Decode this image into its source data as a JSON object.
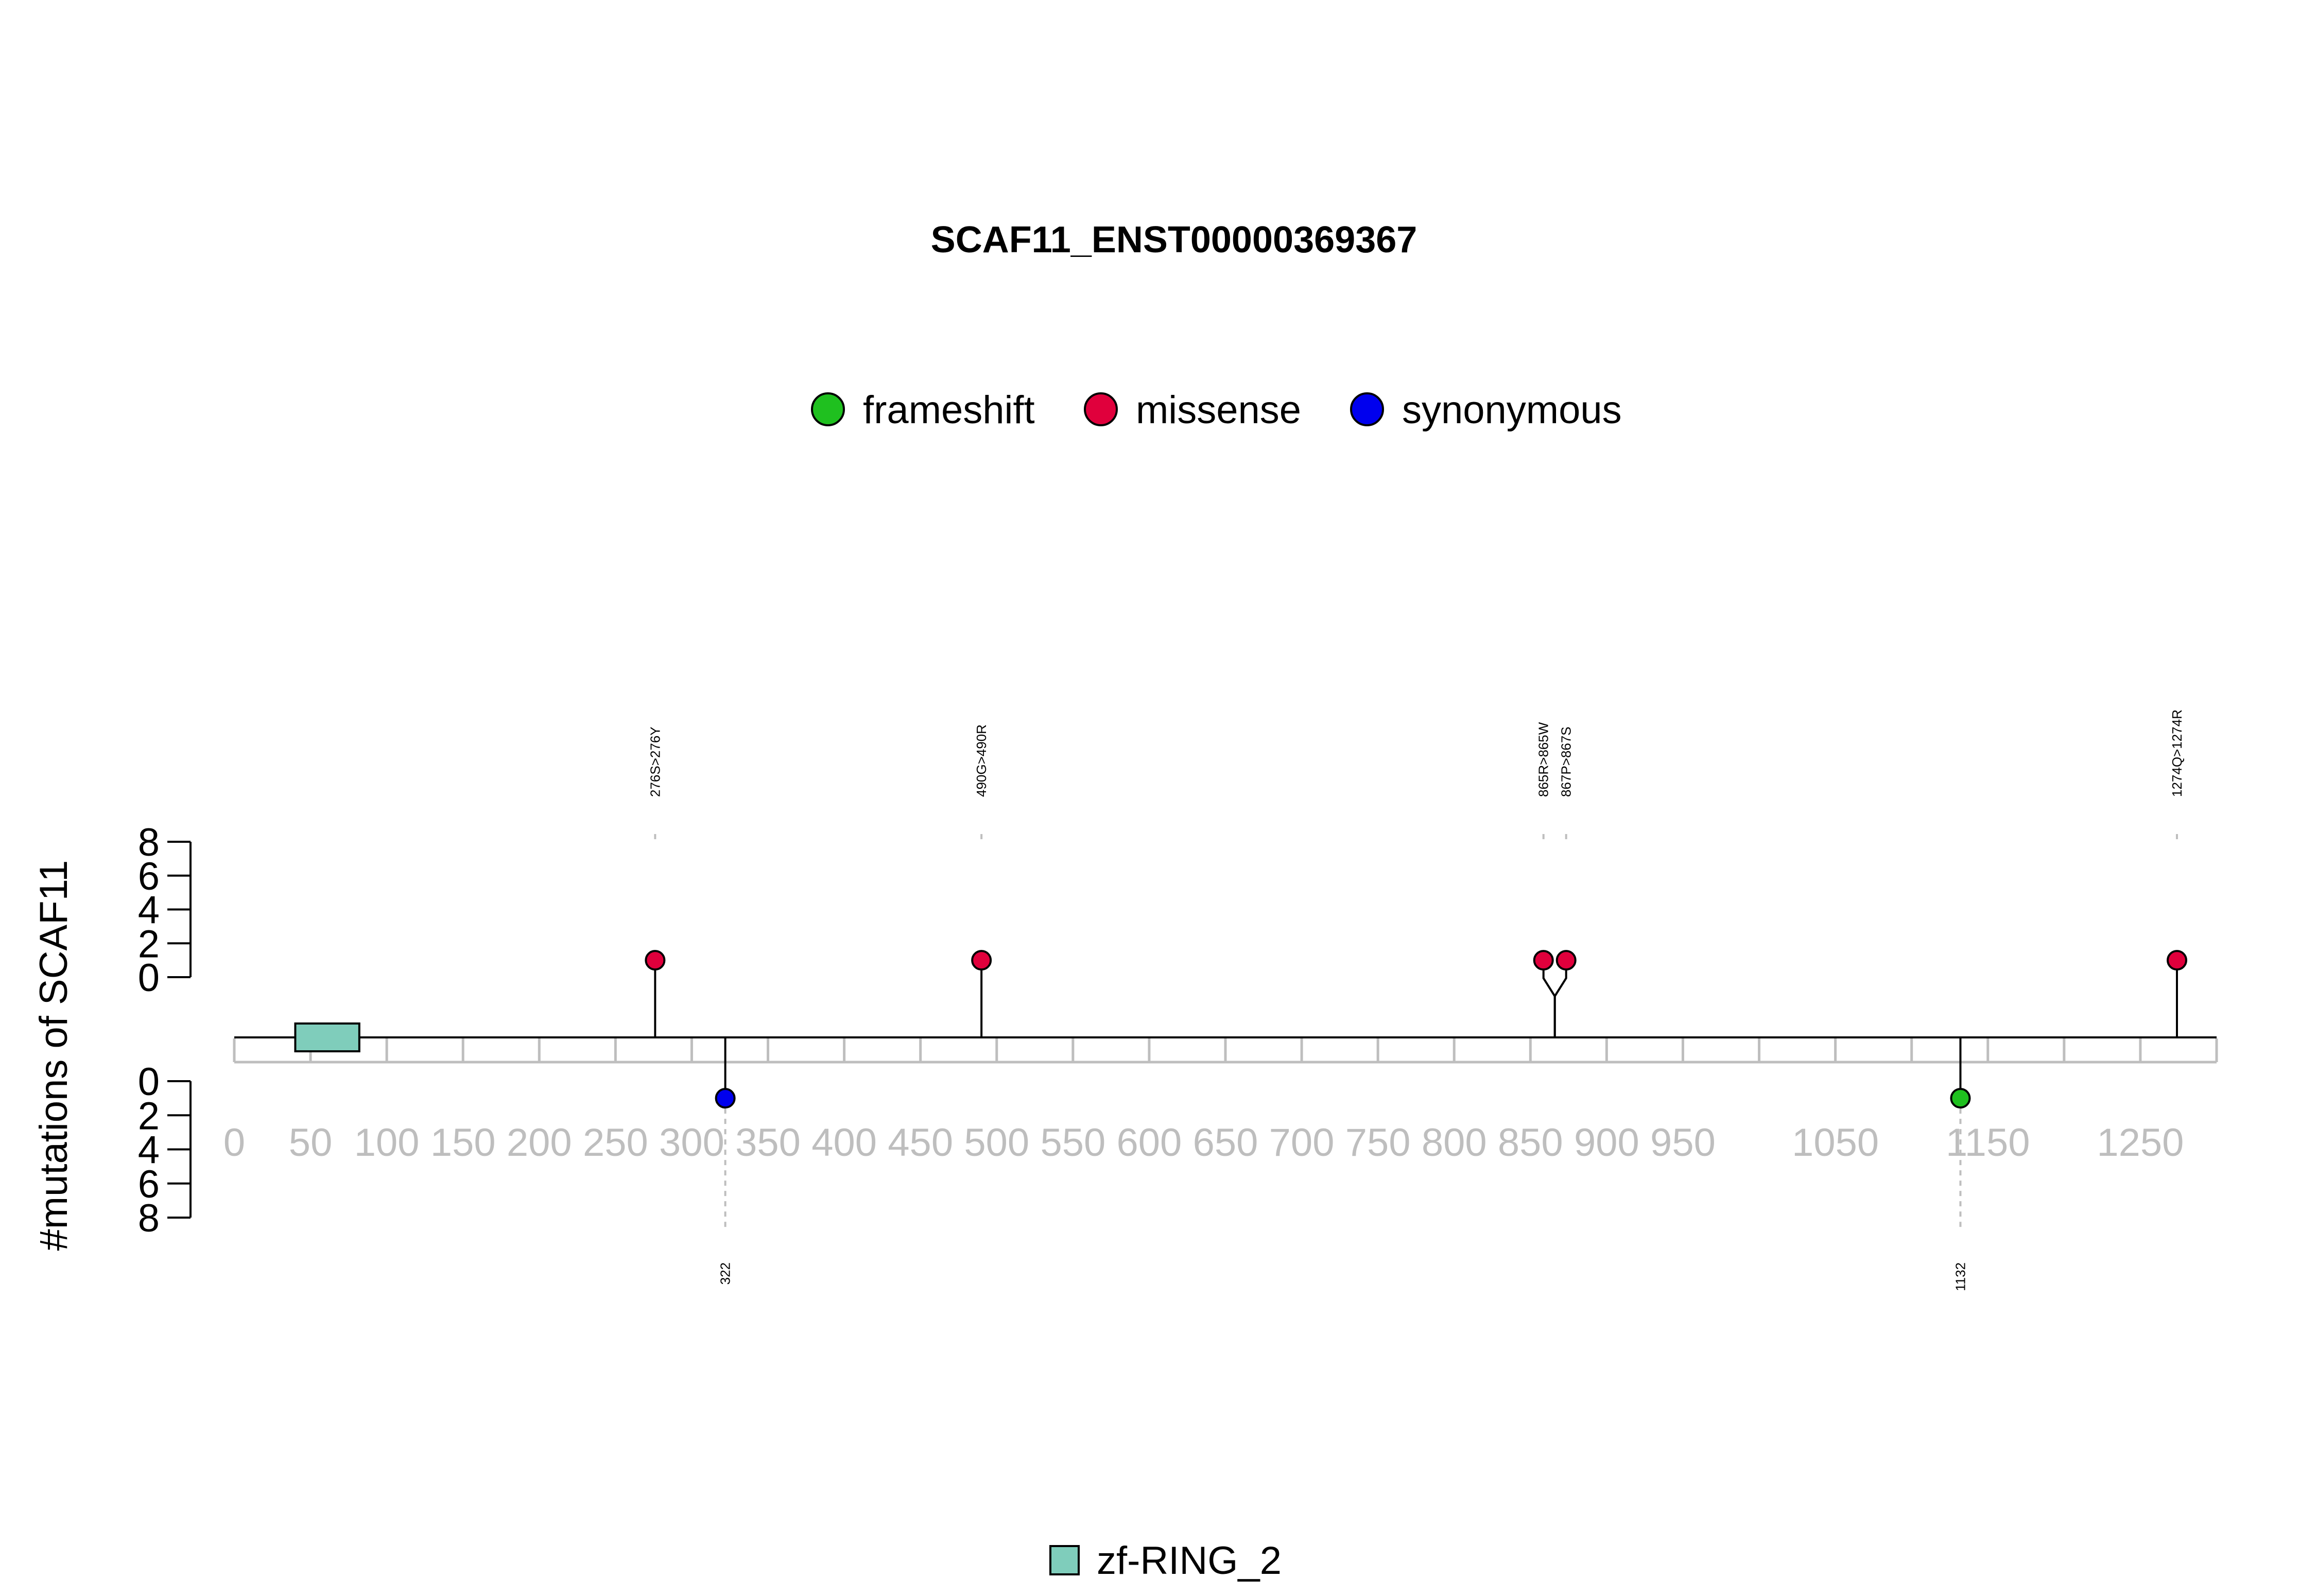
{
  "chart_data": {
    "type": "lollipop",
    "title": "SCAF11_ENST00000369367",
    "ylabel": "#mutations of SCAF11",
    "xlim": [
      0,
      1300
    ],
    "x_ticks": [
      0,
      50,
      100,
      150,
      200,
      250,
      300,
      350,
      400,
      450,
      500,
      550,
      600,
      650,
      700,
      750,
      800,
      850,
      900,
      950,
      1050,
      1150,
      1250
    ],
    "y_ticks": [
      0,
      2,
      4,
      6,
      8
    ],
    "ylim": [
      0,
      8
    ],
    "legend": [
      {
        "name": "frameshift",
        "color": "#1fc01f"
      },
      {
        "name": "missense",
        "color": "#e0003c"
      },
      {
        "name": "synonymous",
        "color": "#0000ee"
      }
    ],
    "domains": [
      {
        "name": "zf-RING_2",
        "start": 40,
        "end": 82,
        "color": "#7fcdbb"
      }
    ],
    "mutations": [
      {
        "position": 276,
        "count": 1,
        "type": "missense",
        "side": "top",
        "label": "276S>276Y"
      },
      {
        "position": 490,
        "count": 1,
        "type": "missense",
        "side": "top",
        "label": "490G>490R"
      },
      {
        "position": 865,
        "count": 1,
        "type": "missense",
        "side": "top",
        "label": "865R>865W"
      },
      {
        "position": 867,
        "count": 1,
        "type": "missense",
        "side": "top",
        "label": "867P>867S"
      },
      {
        "position": 1274,
        "count": 1,
        "type": "missense",
        "side": "top",
        "label": "1274Q>1274R"
      },
      {
        "position": 322,
        "count": 1,
        "type": "synonymous",
        "side": "bottom",
        "label": "322"
      },
      {
        "position": 1132,
        "count": 1,
        "type": "frameshift",
        "side": "bottom",
        "label": "1132"
      }
    ]
  }
}
